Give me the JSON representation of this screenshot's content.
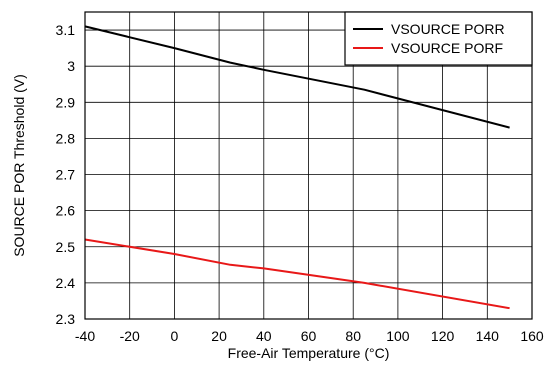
{
  "chart_data": {
    "type": "line",
    "title": "",
    "xlabel": "Free-Air Temperature (°C)",
    "ylabel": "SOURCE POR Threshold (V)",
    "xlim": [
      -40,
      160
    ],
    "ylim": [
      2.3,
      3.15
    ],
    "x_ticks": [
      -40,
      -20,
      0,
      20,
      40,
      60,
      80,
      100,
      120,
      140,
      160
    ],
    "x_tick_labels": [
      "-40",
      "-20",
      "0",
      "20",
      "40",
      "60",
      "80",
      "100",
      "120",
      "140",
      "160"
    ],
    "y_ticks": [
      2.3,
      2.4,
      2.5,
      2.6,
      2.7,
      2.8,
      2.9,
      3.0,
      3.1
    ],
    "y_tick_labels": [
      "2.3",
      "2.4",
      "2.5",
      "2.6",
      "2.7",
      "2.8",
      "2.9",
      "3",
      "3.1"
    ],
    "grid": true,
    "legend_position": "top-right",
    "series": [
      {
        "name": "VSOURCE PORR",
        "color": "#000000",
        "x": [
          -40,
          0,
          25,
          40,
          85,
          150
        ],
        "y": [
          3.11,
          3.05,
          3.01,
          2.99,
          2.935,
          2.83
        ]
      },
      {
        "name": "VSOURCE PORF",
        "color": "#e81818",
        "x": [
          -40,
          0,
          25,
          40,
          85,
          150
        ],
        "y": [
          2.52,
          2.48,
          2.45,
          2.44,
          2.4,
          2.33
        ]
      }
    ]
  }
}
